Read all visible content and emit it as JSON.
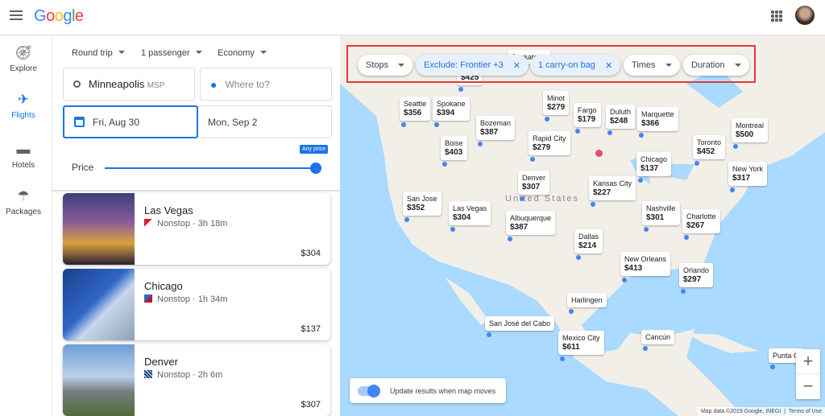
{
  "header": {
    "logo": "Google",
    "menu_icon": "hamburger-icon",
    "apps_icon": "apps-grid-icon"
  },
  "nav": [
    {
      "label": "Explore",
      "icon": "compass-icon"
    },
    {
      "label": "Flights",
      "icon": "plane-icon",
      "active": true
    },
    {
      "label": "Hotels",
      "icon": "bed-icon"
    },
    {
      "label": "Packages",
      "icon": "beach-umbrella-icon"
    }
  ],
  "search": {
    "trip_type": "Round trip",
    "passengers": "1 passenger",
    "cabin": "Economy",
    "origin": "Minneapolis",
    "origin_code": "MSP",
    "destination_placeholder": "Where to?",
    "depart": "Fri, Aug 30",
    "return": "Mon, Sep 2",
    "price_label": "Price",
    "price_tooltip": "Any price",
    "price_level": 1.0
  },
  "results": [
    {
      "city": "Las Vegas",
      "stops": "Nonstop · 3h 18m",
      "price": "$304"
    },
    {
      "city": "Chicago",
      "stops": "Nonstop · 1h 34m",
      "price": "$137"
    },
    {
      "city": "Denver",
      "stops": "Nonstop · 2h 6m",
      "price": "$307"
    }
  ],
  "filters": {
    "stops": "Stops",
    "exclude": "Exclude: Frontier +3",
    "bags": "1 carry-on bag",
    "times": "Times",
    "duration": "Duration"
  },
  "map": {
    "country_label": "United States",
    "destinations": [
      {
        "city": "Saskatoon",
        "price": ""
      },
      {
        "city": "",
        "price": "$425"
      },
      {
        "city": "Seattle",
        "price": "$356"
      },
      {
        "city": "Spokane",
        "price": "$394"
      },
      {
        "city": "Minot",
        "price": "$279"
      },
      {
        "city": "Fargo",
        "price": "$179"
      },
      {
        "city": "Duluth",
        "price": "$248"
      },
      {
        "city": "Marquette",
        "price": "$366"
      },
      {
        "city": "Bozeman",
        "price": "$387"
      },
      {
        "city": "Montreal",
        "price": "$500"
      },
      {
        "city": "Boise",
        "price": "$403"
      },
      {
        "city": "Rapid City",
        "price": "$279"
      },
      {
        "city": "Toronto",
        "price": "$452"
      },
      {
        "city": "Chicago",
        "price": "$137"
      },
      {
        "city": "Denver",
        "price": "$307"
      },
      {
        "city": "Kansas City",
        "price": "$227"
      },
      {
        "city": "New York",
        "price": "$317"
      },
      {
        "city": "San Jose",
        "price": "$352"
      },
      {
        "city": "Las Vegas",
        "price": "$304"
      },
      {
        "city": "Nashville",
        "price": "$301"
      },
      {
        "city": "Charlotte",
        "price": "$267"
      },
      {
        "city": "Albuquerque",
        "price": "$387"
      },
      {
        "city": "Dallas",
        "price": "$214"
      },
      {
        "city": "New Orleans",
        "price": "$413"
      },
      {
        "city": "Orlando",
        "price": "$297"
      },
      {
        "city": "Harlingen",
        "price": ""
      },
      {
        "city": "San José del Cabo",
        "price": ""
      },
      {
        "city": "Mexico City",
        "price": "$611"
      },
      {
        "city": "Cancún",
        "price": ""
      },
      {
        "city": "Punta C",
        "price": ""
      }
    ],
    "update_toggle": "Update results when map moves",
    "update_on": true,
    "zoom_in": "+",
    "zoom_out": "−",
    "credit": "Map data ©2019 Google, INEGI",
    "terms": "Terms of Use"
  }
}
